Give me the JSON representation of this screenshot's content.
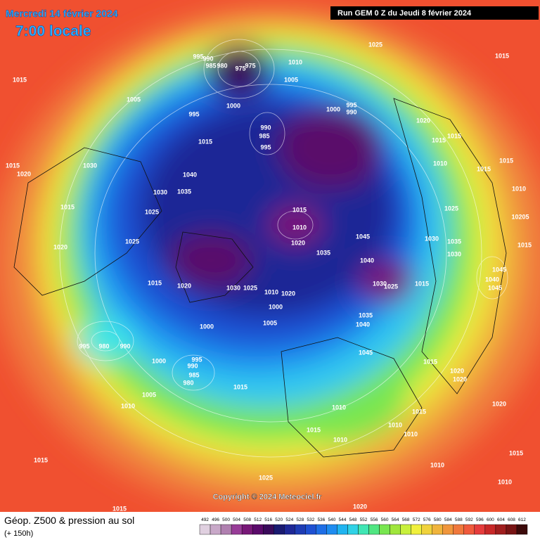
{
  "header": {
    "date": "Mercredi 14 février 2024",
    "time": "7:00 locale",
    "run": "Run GEM 0 Z du Jeudi 8 février 2024"
  },
  "map": {
    "isobar_labels": [
      1025,
      1015,
      1015,
      995,
      990,
      985,
      980,
      975,
      975,
      1010,
      1005,
      1005,
      1000,
      995,
      1000,
      990,
      995,
      990,
      985,
      995,
      1020,
      1015,
      1015,
      1015,
      1015,
      1020,
      1030,
      1010,
      1015,
      1015,
      1040,
      1010,
      1030,
      1035,
      1015,
      1025,
      1015,
      1025,
      10205,
      1010,
      1025,
      1030,
      1035,
      1020,
      1045,
      1015,
      1020,
      1035,
      1030,
      1040,
      1045,
      1040,
      1045,
      1015,
      1020,
      1030,
      1025,
      1015,
      1030,
      1025,
      1010,
      1020,
      1000,
      1035,
      1005,
      1000,
      1040,
      995,
      980,
      990,
      1045,
      1000,
      995,
      990,
      1015,
      985,
      980,
      1020,
      1020,
      1015,
      1005,
      1010,
      1020,
      1010,
      1015,
      1010,
      1010,
      1015,
      1010,
      1015,
      1010,
      1015,
      1025,
      1010,
      1015,
      1020
    ]
  },
  "copyright": "Copyright © 2024 Meteociel.fr",
  "footer": {
    "title": "Géop. Z500 & pression au sol",
    "lead": "(+ 150h)"
  },
  "legend": {
    "values": [
      492,
      496,
      500,
      504,
      508,
      512,
      516,
      520,
      524,
      528,
      532,
      536,
      540,
      544,
      548,
      552,
      556,
      560,
      564,
      568,
      572,
      576,
      580,
      584,
      588,
      592,
      596,
      600,
      604,
      608,
      612
    ],
    "colors": [
      "#e0d0e0",
      "#c8a8c8",
      "#b080b0",
      "#983c98",
      "#781878",
      "#5a0a6a",
      "#3a0a5a",
      "#1a1a70",
      "#1e2896",
      "#1e3cb4",
      "#1e50d2",
      "#1e6ee6",
      "#1e8cf0",
      "#20b4f0",
      "#30d2e6",
      "#40e6b4",
      "#50e682",
      "#78e650",
      "#a0e63c",
      "#c8f03c",
      "#f0f03c",
      "#f0d23c",
      "#f0b43c",
      "#f0963c",
      "#f0783c",
      "#f05a3c",
      "#e63c3c",
      "#c82828",
      "#a01e1e",
      "#781414",
      "#3c0a0a"
    ]
  }
}
